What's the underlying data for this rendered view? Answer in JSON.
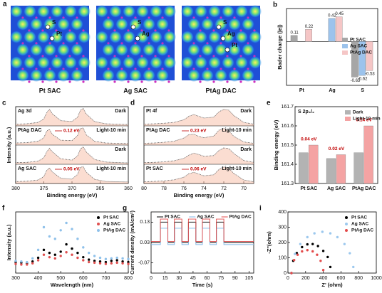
{
  "panel_a": {
    "panel": "a",
    "images": [
      {
        "caption": "Pt SAC",
        "atoms": [
          "S",
          "Pt"
        ]
      },
      {
        "caption": "Ag SAC",
        "atoms": [
          "S",
          "Ag"
        ]
      },
      {
        "caption": "PtAg DAC",
        "atoms": [
          "S",
          "Ag",
          "Pt"
        ]
      }
    ]
  },
  "chart_data": [
    {
      "type": "bar",
      "panel": "b",
      "ylabel": "Bader charge (|e|)",
      "categories": [
        "Pt",
        "Ag",
        "S"
      ],
      "series": [
        {
          "name": "Pt SAC",
          "color": "#a6a6a6",
          "values": [
            0.11,
            null,
            -0.65
          ]
        },
        {
          "name": "Ag SAC",
          "color": "#9cc3ec",
          "values": [
            null,
            0.42,
            -0.62
          ]
        },
        {
          "name": "PtAg DAC",
          "color": "#f5c6c6",
          "values": [
            0.22,
            0.45,
            -0.53
          ]
        }
      ],
      "ylim": [
        -0.8,
        0.6
      ],
      "legend": "center right",
      "show_values": true
    },
    {
      "type": "line",
      "panel": "c",
      "title": "Ag 3d",
      "xlabel": "Binding energy (eV)",
      "ylabel": "Intensity (a.u.)",
      "x": [
        380,
        378,
        376,
        375,
        374.5,
        374,
        373.5,
        372,
        370,
        369,
        368.5,
        368,
        367.5,
        366,
        364,
        362,
        360
      ],
      "xlim": [
        380,
        360
      ],
      "xticks": [
        380,
        375,
        370,
        365,
        360
      ],
      "ylim": [
        0,
        1.1
      ],
      "groups": [
        {
          "name": "PtAg DAC",
          "shift": "0.12 eV",
          "series": [
            {
              "name": "Dark",
              "color": "#555555",
              "values": [
                0.1,
                0.12,
                0.2,
                0.4,
                0.75,
                0.95,
                0.7,
                0.3,
                0.25,
                0.5,
                0.9,
                1.0,
                0.7,
                0.25,
                0.12,
                0.1,
                0.08
              ]
            },
            {
              "name": "Light-10 min",
              "color": "#555555",
              "values": [
                0.12,
                0.14,
                0.22,
                0.42,
                0.8,
                0.9,
                0.62,
                0.28,
                0.26,
                0.55,
                0.95,
                0.98,
                0.6,
                0.22,
                0.12,
                0.1,
                0.09
              ]
            }
          ]
        },
        {
          "name": "Ag SAC",
          "shift": "0.05 eV",
          "series": [
            {
              "name": "Dark",
              "color": "#555555",
              "values": [
                0.1,
                0.11,
                0.18,
                0.38,
                0.7,
                0.92,
                0.72,
                0.32,
                0.24,
                0.48,
                0.88,
                1.0,
                0.72,
                0.28,
                0.13,
                0.1,
                0.08
              ]
            },
            {
              "name": "Light-10 min",
              "color": "#555555",
              "values": [
                0.11,
                0.13,
                0.2,
                0.4,
                0.74,
                0.9,
                0.66,
                0.3,
                0.25,
                0.52,
                0.92,
                0.97,
                0.66,
                0.24,
                0.12,
                0.1,
                0.09
              ]
            }
          ]
        }
      ]
    },
    {
      "type": "line",
      "panel": "d",
      "title": "Pt 4f",
      "xlabel": "Binding energy (eV)",
      "x": [
        80,
        79,
        78,
        77,
        76,
        75.5,
        75,
        74.5,
        74,
        73,
        72.5,
        72,
        71.5,
        71,
        70,
        69
      ],
      "xlim": [
        80,
        69
      ],
      "xticks": [
        80,
        78,
        76,
        74,
        72,
        70
      ],
      "ylim": [
        0,
        1.1
      ],
      "groups": [
        {
          "name": "PtAg DAC",
          "shift": "0.23 eV",
          "series": [
            {
              "name": "Dark",
              "color": "#555555",
              "values": [
                0.1,
                0.12,
                0.15,
                0.2,
                0.35,
                0.55,
                0.65,
                0.55,
                0.45,
                0.5,
                0.8,
                0.95,
                0.9,
                0.6,
                0.2,
                0.1
              ]
            },
            {
              "name": "Light-10 min",
              "color": "#555555",
              "values": [
                0.1,
                0.12,
                0.16,
                0.22,
                0.4,
                0.6,
                0.62,
                0.5,
                0.42,
                0.52,
                0.85,
                0.96,
                0.82,
                0.5,
                0.18,
                0.1
              ]
            }
          ]
        },
        {
          "name": "Pt SAC",
          "shift": "0.06 eV",
          "series": [
            {
              "name": "Dark",
              "color": "#555555",
              "values": [
                0.1,
                0.11,
                0.14,
                0.2,
                0.34,
                0.52,
                0.64,
                0.56,
                0.46,
                0.5,
                0.78,
                0.94,
                0.9,
                0.62,
                0.22,
                0.11
              ]
            },
            {
              "name": "Light-10 min",
              "color": "#555555",
              "values": [
                0.1,
                0.12,
                0.15,
                0.21,
                0.36,
                0.56,
                0.64,
                0.54,
                0.44,
                0.5,
                0.8,
                0.95,
                0.88,
                0.58,
                0.2,
                0.1
              ]
            }
          ]
        }
      ]
    },
    {
      "type": "bar",
      "panel": "e",
      "title": "S 2p₃/₂",
      "ylabel": "Binding energy (eV)",
      "categories": [
        "Pt SAC",
        "Ag SAC",
        "PtAg DAC"
      ],
      "series": [
        {
          "name": "Dark",
          "color": "#b3b3b3",
          "values": [
            161.46,
            161.43,
            161.46
          ]
        },
        {
          "name": "Light-10 min",
          "color": "#f4a3a3",
          "values": [
            161.5,
            161.45,
            161.6
          ]
        }
      ],
      "annotations": [
        "0.04 eV",
        "0.02 eV",
        "0.14 eV"
      ],
      "ylim": [
        161.3,
        161.7
      ],
      "yticks": [
        161.3,
        161.4,
        161.5,
        161.6,
        161.7
      ],
      "legend": "upper right"
    },
    {
      "type": "scatter",
      "panel": "f",
      "xlabel": "Wavelength (nm)",
      "ylabel": "Intensity (a.u.)",
      "x": [
        300,
        325,
        350,
        375,
        400,
        425,
        450,
        475,
        500,
        525,
        550,
        575,
        600,
        625,
        650,
        675,
        700,
        725,
        750,
        775,
        800
      ],
      "xlim": [
        300,
        800
      ],
      "xticks": [
        300,
        400,
        500,
        600,
        700,
        800
      ],
      "ylim": [
        0,
        1000
      ],
      "series": [
        {
          "name": "Pt SAC",
          "color": "#000000",
          "values": [
            180,
            170,
            160,
            190,
            250,
            380,
            330,
            300,
            350,
            470,
            400,
            330,
            260,
            220,
            200,
            190,
            180,
            200,
            210,
            190,
            180
          ]
        },
        {
          "name": "Ag SAC",
          "color": "#e05050",
          "values": [
            150,
            140,
            140,
            160,
            210,
            300,
            260,
            240,
            280,
            340,
            300,
            250,
            210,
            180,
            170,
            160,
            150,
            160,
            170,
            160,
            150
          ]
        },
        {
          "name": "PtAg DAC",
          "color": "#8fc1ea",
          "values": [
            200,
            190,
            180,
            240,
            380,
            750,
            600,
            560,
            700,
            820,
            720,
            560,
            420,
            330,
            280,
            250,
            230,
            240,
            250,
            240,
            230
          ]
        }
      ],
      "legend": "upper right"
    },
    {
      "type": "line",
      "panel": "g",
      "xlabel": "Time (s)",
      "ylabel": "Current density (mA/cm²)",
      "x": [
        0,
        10,
        10,
        18,
        18,
        25,
        25,
        33,
        33,
        40,
        40,
        48,
        48,
        55,
        55,
        63,
        63,
        70,
        70,
        78,
        78,
        110
      ],
      "xlim": [
        0,
        110
      ],
      "xticks": [
        0,
        15,
        30,
        45,
        60,
        75,
        90,
        105
      ],
      "ylim": [
        -0.12,
        0.18
      ],
      "yticks": [
        -0.07,
        0.03,
        0.13
      ],
      "series": [
        {
          "name": "Pt SAC",
          "color": "#000000",
          "values": [
            0.03,
            0.03,
            0.13,
            0.13,
            0.03,
            0.03,
            0.13,
            0.13,
            0.03,
            0.03,
            0.13,
            0.13,
            0.03,
            0.03,
            0.13,
            0.13,
            0.03,
            0.03,
            0.13,
            0.13,
            0.03,
            0.03
          ]
        },
        {
          "name": "Ag SAC",
          "color": "#7fb6e6",
          "values": [
            0.02,
            0.02,
            0.1,
            0.1,
            0.02,
            0.02,
            0.1,
            0.1,
            0.02,
            0.02,
            0.1,
            0.1,
            0.02,
            0.02,
            0.1,
            0.1,
            0.02,
            0.02,
            0.1,
            0.1,
            0.02,
            0.02
          ]
        },
        {
          "name": "PtAg DAC",
          "color": "#e34a4a",
          "values": [
            0.035,
            0.035,
            0.145,
            0.145,
            0.035,
            0.035,
            0.145,
            0.145,
            0.035,
            0.035,
            0.145,
            0.145,
            0.035,
            0.035,
            0.145,
            0.145,
            0.035,
            0.035,
            0.145,
            0.145,
            0.035,
            0.035
          ]
        }
      ],
      "legend": "upper center"
    },
    {
      "type": "scatter",
      "panel": "i",
      "xlabel": "Z' (ohm)",
      "ylabel": "-Z''(ohm)",
      "xlim": [
        0,
        1000
      ],
      "xticks": [
        0,
        200,
        400,
        600,
        800,
        1000
      ],
      "ylim": [
        0,
        400
      ],
      "yticks": [
        0,
        100,
        200,
        300,
        400
      ],
      "series": [
        {
          "name": "Pt SAC",
          "color": "#000000",
          "x": [
            40,
            60,
            100,
            160,
            220,
            280,
            340,
            400,
            450,
            480
          ],
          "values": [
            0,
            80,
            131,
            170,
            188,
            190,
            177,
            145,
            105,
            40
          ]
        },
        {
          "name": "Ag SAC",
          "color": "#9cc8ee",
          "x": [
            40,
            80,
            140,
            220,
            300,
            390,
            480,
            560,
            640,
            700,
            740
          ],
          "values": [
            0,
            125,
            190,
            235,
            260,
            270,
            260,
            235,
            190,
            130,
            40
          ]
        },
        {
          "name": "PtAg DAC",
          "color": "#e34a4a",
          "x": [
            40,
            70,
            110,
            160,
            220,
            280,
            330,
            370,
            400
          ],
          "values": [
            0,
            85,
            120,
            142,
            150,
            142,
            120,
            80,
            20
          ]
        }
      ],
      "legend": "upper right"
    }
  ]
}
